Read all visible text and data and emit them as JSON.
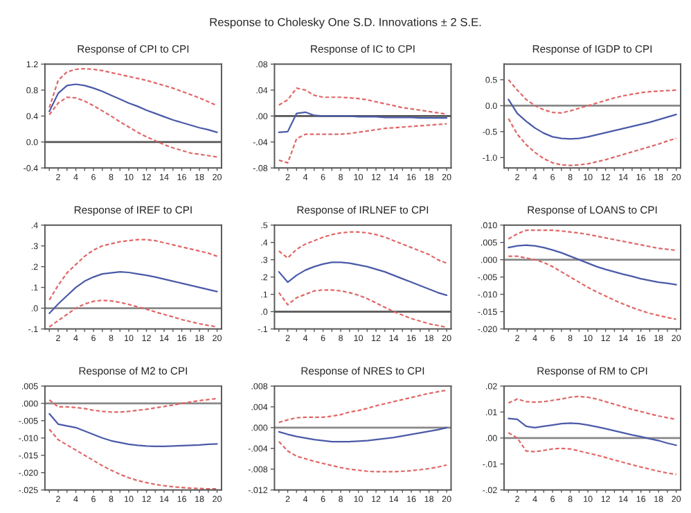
{
  "chart_data": [
    {
      "type": "line",
      "title": "Response of CPI to CPI",
      "annotations": [
        "Response to Cholesky One S.D. Innovations ± 2 S.E."
      ],
      "x": [
        1,
        2,
        3,
        4,
        5,
        6,
        7,
        8,
        9,
        10,
        11,
        12,
        13,
        14,
        15,
        16,
        17,
        18,
        19,
        20
      ],
      "xlim": [
        0.5,
        20.5
      ],
      "xticks": [
        {
          "value": 1,
          "label": null
        },
        2,
        {
          "value": 3,
          "label": null
        },
        4,
        {
          "value": 5,
          "label": null
        },
        6,
        {
          "value": 7,
          "label": null
        },
        8,
        {
          "value": 9,
          "label": null
        },
        10,
        {
          "value": 11,
          "label": null
        },
        12,
        {
          "value": 13,
          "label": null
        },
        14,
        {
          "value": 15,
          "label": null
        },
        16,
        {
          "value": 17,
          "label": null
        },
        18,
        {
          "value": 19,
          "label": null
        },
        20
      ],
      "ylim": [
        -0.4,
        1.2
      ],
      "yticks": [
        {
          "value": -0.4,
          "label": "-0.4"
        },
        {
          "value": 0,
          "label": "0.0"
        },
        0.4,
        0.8,
        1.2
      ],
      "ref_lines": [
        {
          "axis": "y",
          "value": 0,
          "color": "#555555"
        }
      ],
      "series": [
        {
          "color": "#4a5aa8",
          "line_style": "solid",
          "values": [
            0.47,
            0.75,
            0.87,
            0.89,
            0.87,
            0.83,
            0.78,
            0.72,
            0.66,
            0.6,
            0.55,
            0.49,
            0.44,
            0.39,
            0.34,
            0.3,
            0.26,
            0.22,
            0.19,
            0.15
          ]
        },
        {
          "color": "#e06666",
          "line_style": "dashed",
          "values": [
            0.53,
            0.95,
            1.08,
            1.12,
            1.13,
            1.12,
            1.1,
            1.07,
            1.04,
            1.01,
            0.98,
            0.95,
            0.91,
            0.87,
            0.83,
            0.78,
            0.73,
            0.68,
            0.62,
            0.56
          ]
        },
        {
          "color": "#e06666",
          "line_style": "dashed",
          "values": [
            0.42,
            0.6,
            0.69,
            0.68,
            0.63,
            0.56,
            0.48,
            0.4,
            0.31,
            0.23,
            0.15,
            0.08,
            0.02,
            -0.04,
            -0.09,
            -0.13,
            -0.17,
            -0.19,
            -0.21,
            -0.23
          ]
        }
      ]
    },
    {
      "type": "line",
      "title": "Response of IC to CPI",
      "x": [
        1,
        2,
        3,
        4,
        5,
        6,
        7,
        8,
        9,
        10,
        11,
        12,
        13,
        14,
        15,
        16,
        17,
        18,
        19,
        20
      ],
      "xlim": [
        0.5,
        20.5
      ],
      "xticks": [
        {
          "value": 1,
          "label": null
        },
        2,
        {
          "value": 3,
          "label": null
        },
        4,
        {
          "value": 5,
          "label": null
        },
        6,
        {
          "value": 7,
          "label": null
        },
        8,
        {
          "value": 9,
          "label": null
        },
        10,
        {
          "value": 11,
          "label": null
        },
        12,
        {
          "value": 13,
          "label": null
        },
        14,
        {
          "value": 15,
          "label": null
        },
        16,
        {
          "value": 17,
          "label": null
        },
        18,
        {
          "value": 19,
          "label": null
        },
        20
      ],
      "ylim": [
        -0.08,
        0.08
      ],
      "yticks": [
        {
          "value": -0.08,
          "label": "-.08"
        },
        {
          "value": -0.04,
          "label": "-.04"
        },
        {
          "value": 0,
          "label": ".00"
        },
        {
          "value": 0.04,
          "label": ".04"
        },
        {
          "value": 0.08,
          "label": ".08"
        }
      ],
      "ref_lines": [
        {
          "axis": "y",
          "value": 0,
          "color": "#555555"
        }
      ],
      "series": [
        {
          "color": "#4a5aa8",
          "line_style": "solid",
          "values": [
            -0.025,
            -0.024,
            0.004,
            0.006,
            0.001,
            0.0,
            0.0,
            0.0,
            0.0,
            -0.001,
            -0.001,
            -0.001,
            -0.002,
            -0.002,
            -0.002,
            -0.002,
            -0.003,
            -0.003,
            -0.003,
            -0.003
          ]
        },
        {
          "color": "#e06666",
          "line_style": "dashed",
          "values": [
            0.017,
            0.025,
            0.043,
            0.04,
            0.032,
            0.029,
            0.029,
            0.029,
            0.028,
            0.027,
            0.025,
            0.022,
            0.019,
            0.016,
            0.013,
            0.011,
            0.009,
            0.007,
            0.005,
            0.003
          ]
        },
        {
          "color": "#e06666",
          "line_style": "dashed",
          "values": [
            -0.068,
            -0.072,
            -0.035,
            -0.028,
            -0.028,
            -0.028,
            -0.028,
            -0.028,
            -0.027,
            -0.025,
            -0.023,
            -0.021,
            -0.019,
            -0.018,
            -0.017,
            -0.016,
            -0.015,
            -0.014,
            -0.013,
            -0.012
          ]
        }
      ]
    },
    {
      "type": "line",
      "title": "Response of IGDP to CPI",
      "x": [
        1,
        2,
        3,
        4,
        5,
        6,
        7,
        8,
        9,
        10,
        11,
        12,
        13,
        14,
        15,
        16,
        17,
        18,
        19,
        20
      ],
      "xlim": [
        0.5,
        20.5
      ],
      "xticks": [
        {
          "value": 1,
          "label": null
        },
        2,
        {
          "value": 3,
          "label": null
        },
        4,
        {
          "value": 5,
          "label": null
        },
        6,
        {
          "value": 7,
          "label": null
        },
        8,
        {
          "value": 9,
          "label": null
        },
        10,
        {
          "value": 11,
          "label": null
        },
        12,
        {
          "value": 13,
          "label": null
        },
        14,
        {
          "value": 15,
          "label": null
        },
        16,
        {
          "value": 17,
          "label": null
        },
        18,
        {
          "value": 19,
          "label": null
        },
        20
      ],
      "ylim": [
        -1.2,
        0.8
      ],
      "yticks": [
        {
          "value": -1.0,
          "label": "-1.0"
        },
        {
          "value": -0.5,
          "label": "-0.5"
        },
        {
          "value": 0,
          "label": "0.0"
        },
        0.5
      ],
      "ref_lines": [
        {
          "axis": "y",
          "value": 0,
          "color": "#888888"
        }
      ],
      "series": [
        {
          "color": "#4a5aa8",
          "line_style": "solid",
          "values": [
            0.12,
            -0.15,
            -0.3,
            -0.43,
            -0.53,
            -0.6,
            -0.63,
            -0.64,
            -0.63,
            -0.6,
            -0.56,
            -0.52,
            -0.48,
            -0.44,
            -0.4,
            -0.36,
            -0.32,
            -0.27,
            -0.22,
            -0.17
          ]
        },
        {
          "color": "#e06666",
          "line_style": "dashed",
          "values": [
            0.5,
            0.3,
            0.12,
            0.0,
            -0.08,
            -0.13,
            -0.14,
            -0.1,
            -0.05,
            0.0,
            0.05,
            0.1,
            0.15,
            0.19,
            0.22,
            0.25,
            0.27,
            0.28,
            0.29,
            0.3
          ]
        },
        {
          "color": "#e06666",
          "line_style": "dashed",
          "values": [
            -0.25,
            -0.55,
            -0.75,
            -0.9,
            -1.02,
            -1.1,
            -1.14,
            -1.15,
            -1.14,
            -1.12,
            -1.08,
            -1.04,
            -0.99,
            -0.94,
            -0.89,
            -0.84,
            -0.79,
            -0.74,
            -0.68,
            -0.63
          ]
        }
      ]
    },
    {
      "type": "line",
      "title": "Response of IREF to CPI",
      "x": [
        1,
        2,
        3,
        4,
        5,
        6,
        7,
        8,
        9,
        10,
        11,
        12,
        13,
        14,
        15,
        16,
        17,
        18,
        19,
        20
      ],
      "xlim": [
        0.5,
        20.5
      ],
      "xticks": [
        {
          "value": 1,
          "label": null
        },
        2,
        {
          "value": 3,
          "label": null
        },
        4,
        {
          "value": 5,
          "label": null
        },
        6,
        {
          "value": 7,
          "label": null
        },
        8,
        {
          "value": 9,
          "label": null
        },
        10,
        {
          "value": 11,
          "label": null
        },
        12,
        {
          "value": 13,
          "label": null
        },
        14,
        {
          "value": 15,
          "label": null
        },
        16,
        {
          "value": 17,
          "label": null
        },
        18,
        {
          "value": 19,
          "label": null
        },
        20
      ],
      "ylim": [
        -0.1,
        0.4
      ],
      "yticks": [
        {
          "value": -0.1,
          "label": "-.1"
        },
        {
          "value": 0,
          "label": ".0"
        },
        {
          "value": 0.1,
          "label": ".1"
        },
        {
          "value": 0.2,
          "label": ".2"
        },
        {
          "value": 0.3,
          "label": ".3"
        },
        {
          "value": 0.4,
          "label": ".4"
        }
      ],
      "ref_lines": [
        {
          "axis": "y",
          "value": 0,
          "color": "#888888"
        }
      ],
      "series": [
        {
          "color": "#4a5aa8",
          "line_style": "solid",
          "values": [
            -0.025,
            0.02,
            0.06,
            0.1,
            0.13,
            0.15,
            0.165,
            0.17,
            0.175,
            0.172,
            0.165,
            0.158,
            0.15,
            0.14,
            0.13,
            0.12,
            0.11,
            0.1,
            0.09,
            0.08
          ]
        },
        {
          "color": "#e06666",
          "line_style": "dashed",
          "values": [
            0.04,
            0.11,
            0.17,
            0.21,
            0.25,
            0.28,
            0.3,
            0.31,
            0.32,
            0.325,
            0.33,
            0.33,
            0.325,
            0.315,
            0.305,
            0.295,
            0.285,
            0.275,
            0.265,
            0.25
          ]
        },
        {
          "color": "#e06666",
          "line_style": "dashed",
          "values": [
            -0.09,
            -0.06,
            -0.03,
            0.0,
            0.02,
            0.033,
            0.038,
            0.035,
            0.028,
            0.018,
            0.006,
            -0.005,
            -0.018,
            -0.03,
            -0.042,
            -0.055,
            -0.065,
            -0.075,
            -0.083,
            -0.09
          ]
        }
      ]
    },
    {
      "type": "line",
      "title": "Response of IRLNEF to CPI",
      "x": [
        1,
        2,
        3,
        4,
        5,
        6,
        7,
        8,
        9,
        10,
        11,
        12,
        13,
        14,
        15,
        16,
        17,
        18,
        19,
        20
      ],
      "xlim": [
        0.5,
        20.5
      ],
      "xticks": [
        {
          "value": 1,
          "label": null
        },
        2,
        {
          "value": 3,
          "label": null
        },
        4,
        {
          "value": 5,
          "label": null
        },
        6,
        {
          "value": 7,
          "label": null
        },
        8,
        {
          "value": 9,
          "label": null
        },
        10,
        {
          "value": 11,
          "label": null
        },
        12,
        {
          "value": 13,
          "label": null
        },
        14,
        {
          "value": 15,
          "label": null
        },
        16,
        {
          "value": 17,
          "label": null
        },
        18,
        {
          "value": 19,
          "label": null
        },
        20
      ],
      "ylim": [
        -0.1,
        0.5
      ],
      "yticks": [
        {
          "value": -0.1,
          "label": "-.1"
        },
        {
          "value": 0,
          "label": ".0"
        },
        {
          "value": 0.1,
          "label": ".1"
        },
        {
          "value": 0.2,
          "label": ".2"
        },
        {
          "value": 0.3,
          "label": ".3"
        },
        {
          "value": 0.4,
          "label": ".4"
        },
        {
          "value": 0.5,
          "label": ".5"
        }
      ],
      "ref_lines": [
        {
          "axis": "y",
          "value": 0,
          "color": "#555555"
        }
      ],
      "series": [
        {
          "color": "#4a5aa8",
          "line_style": "solid",
          "values": [
            0.23,
            0.17,
            0.21,
            0.24,
            0.26,
            0.275,
            0.285,
            0.285,
            0.28,
            0.27,
            0.26,
            0.245,
            0.23,
            0.21,
            0.19,
            0.17,
            0.15,
            0.13,
            0.11,
            0.095
          ]
        },
        {
          "color": "#e06666",
          "line_style": "dashed",
          "values": [
            0.35,
            0.31,
            0.36,
            0.39,
            0.41,
            0.43,
            0.445,
            0.455,
            0.46,
            0.46,
            0.455,
            0.445,
            0.43,
            0.41,
            0.39,
            0.37,
            0.35,
            0.33,
            0.3,
            0.28
          ]
        },
        {
          "color": "#e06666",
          "line_style": "dashed",
          "values": [
            0.11,
            0.04,
            0.08,
            0.1,
            0.12,
            0.125,
            0.125,
            0.12,
            0.11,
            0.095,
            0.075,
            0.05,
            0.025,
            0.0,
            -0.02,
            -0.04,
            -0.055,
            -0.07,
            -0.08,
            -0.09
          ]
        }
      ]
    },
    {
      "type": "line",
      "title": "Response of LOANS to CPI",
      "x": [
        1,
        2,
        3,
        4,
        5,
        6,
        7,
        8,
        9,
        10,
        11,
        12,
        13,
        14,
        15,
        16,
        17,
        18,
        19,
        20
      ],
      "xlim": [
        0.5,
        20.5
      ],
      "xticks": [
        {
          "value": 1,
          "label": null
        },
        2,
        {
          "value": 3,
          "label": null
        },
        4,
        {
          "value": 5,
          "label": null
        },
        6,
        {
          "value": 7,
          "label": null
        },
        8,
        {
          "value": 9,
          "label": null
        },
        10,
        {
          "value": 11,
          "label": null
        },
        12,
        {
          "value": 13,
          "label": null
        },
        14,
        {
          "value": 15,
          "label": null
        },
        16,
        {
          "value": 17,
          "label": null
        },
        18,
        {
          "value": 19,
          "label": null
        },
        20
      ],
      "ylim": [
        -0.02,
        0.01
      ],
      "yticks": [
        {
          "value": -0.02,
          "label": "-.020"
        },
        {
          "value": -0.015,
          "label": "-.015"
        },
        {
          "value": -0.01,
          "label": "-.010"
        },
        {
          "value": -0.005,
          "label": "-.005"
        },
        {
          "value": 0,
          "label": ".000"
        },
        {
          "value": 0.005,
          "label": ".005"
        },
        {
          "value": 0.01,
          "label": ".010"
        }
      ],
      "ref_lines": [
        {
          "axis": "y",
          "value": 0,
          "color": "#888888"
        }
      ],
      "series": [
        {
          "color": "#4a5aa8",
          "line_style": "solid",
          "values": [
            0.0035,
            0.004,
            0.0042,
            0.004,
            0.0035,
            0.0028,
            0.002,
            0.001,
            0.0,
            -0.001,
            -0.002,
            -0.0028,
            -0.0035,
            -0.0042,
            -0.0048,
            -0.0055,
            -0.006,
            -0.0065,
            -0.0068,
            -0.0072
          ]
        },
        {
          "color": "#e06666",
          "line_style": "dashed",
          "values": [
            0.006,
            0.0075,
            0.0085,
            0.0085,
            0.0085,
            0.0085,
            0.0083,
            0.008,
            0.0077,
            0.0073,
            0.0068,
            0.0063,
            0.0058,
            0.0053,
            0.0048,
            0.0043,
            0.0038,
            0.0033,
            0.003,
            0.0027
          ]
        },
        {
          "color": "#e06666",
          "line_style": "dashed",
          "values": [
            0.001,
            0.001,
            0.0005,
            0.0,
            -0.0008,
            -0.002,
            -0.0035,
            -0.005,
            -0.0065,
            -0.008,
            -0.0093,
            -0.0105,
            -0.0117,
            -0.0128,
            -0.0138,
            -0.0147,
            -0.0155,
            -0.0161,
            -0.0167,
            -0.0172
          ]
        }
      ]
    },
    {
      "type": "line",
      "title": "Response of M2 to CPI",
      "x": [
        1,
        2,
        3,
        4,
        5,
        6,
        7,
        8,
        9,
        10,
        11,
        12,
        13,
        14,
        15,
        16,
        17,
        18,
        19,
        20
      ],
      "xlim": [
        0.5,
        20.5
      ],
      "xticks": [
        {
          "value": 1,
          "label": null
        },
        2,
        {
          "value": 3,
          "label": null
        },
        4,
        {
          "value": 5,
          "label": null
        },
        6,
        {
          "value": 7,
          "label": null
        },
        8,
        {
          "value": 9,
          "label": null
        },
        10,
        {
          "value": 11,
          "label": null
        },
        12,
        {
          "value": 13,
          "label": null
        },
        14,
        {
          "value": 15,
          "label": null
        },
        16,
        {
          "value": 17,
          "label": null
        },
        18,
        {
          "value": 19,
          "label": null
        },
        20
      ],
      "ylim": [
        -0.025,
        0.005
      ],
      "yticks": [
        {
          "value": -0.025,
          "label": "-.025"
        },
        {
          "value": -0.02,
          "label": "-.020"
        },
        {
          "value": -0.015,
          "label": "-.015"
        },
        {
          "value": -0.01,
          "label": "-.010"
        },
        {
          "value": -0.005,
          "label": "-.005"
        },
        {
          "value": 0,
          "label": ".000"
        },
        {
          "value": 0.005,
          "label": ".005"
        }
      ],
      "ref_lines": [
        {
          "axis": "y",
          "value": 0,
          "color": "#888888"
        }
      ],
      "series": [
        {
          "color": "#4a5aa8",
          "line_style": "solid",
          "values": [
            -0.003,
            -0.006,
            -0.0065,
            -0.007,
            -0.008,
            -0.009,
            -0.01,
            -0.0108,
            -0.0113,
            -0.0118,
            -0.0121,
            -0.0123,
            -0.0124,
            -0.0124,
            -0.0123,
            -0.0122,
            -0.0121,
            -0.012,
            -0.0118,
            -0.0117
          ]
        },
        {
          "color": "#e06666",
          "line_style": "dashed",
          "values": [
            0.001,
            -0.001,
            -0.001,
            -0.0012,
            -0.0015,
            -0.002,
            -0.0023,
            -0.0025,
            -0.0025,
            -0.0023,
            -0.002,
            -0.0017,
            -0.0013,
            -0.0009,
            -0.0005,
            0.0,
            0.0004,
            0.0008,
            0.0011,
            0.0014
          ]
        },
        {
          "color": "#e06666",
          "line_style": "dashed",
          "values": [
            -0.0075,
            -0.0105,
            -0.012,
            -0.0135,
            -0.015,
            -0.0165,
            -0.018,
            -0.0193,
            -0.0205,
            -0.0215,
            -0.0223,
            -0.0229,
            -0.0234,
            -0.0238,
            -0.0241,
            -0.0243,
            -0.0245,
            -0.0246,
            -0.0247,
            -0.0247
          ]
        }
      ]
    },
    {
      "type": "line",
      "title": "Response of NRES to CPI",
      "x": [
        1,
        2,
        3,
        4,
        5,
        6,
        7,
        8,
        9,
        10,
        11,
        12,
        13,
        14,
        15,
        16,
        17,
        18,
        19,
        20
      ],
      "xlim": [
        0.5,
        20.5
      ],
      "xticks": [
        {
          "value": 1,
          "label": null
        },
        2,
        {
          "value": 3,
          "label": null
        },
        4,
        {
          "value": 5,
          "label": null
        },
        6,
        {
          "value": 7,
          "label": null
        },
        8,
        {
          "value": 9,
          "label": null
        },
        10,
        {
          "value": 11,
          "label": null
        },
        12,
        {
          "value": 13,
          "label": null
        },
        14,
        {
          "value": 15,
          "label": null
        },
        16,
        {
          "value": 17,
          "label": null
        },
        18,
        {
          "value": 19,
          "label": null
        },
        20
      ],
      "ylim": [
        -0.012,
        0.008
      ],
      "yticks": [
        {
          "value": -0.012,
          "label": "-.012"
        },
        {
          "value": -0.008,
          "label": "-.008"
        },
        {
          "value": -0.004,
          "label": "-.004"
        },
        {
          "value": 0,
          "label": ".000"
        },
        {
          "value": 0.004,
          "label": ".004"
        },
        {
          "value": 0.008,
          "label": ".008"
        }
      ],
      "ref_lines": [
        {
          "axis": "y",
          "value": 0,
          "color": "#888888"
        }
      ],
      "series": [
        {
          "color": "#4a5aa8",
          "line_style": "solid",
          "values": [
            -0.0008,
            -0.0013,
            -0.0017,
            -0.002,
            -0.0023,
            -0.0025,
            -0.0027,
            -0.0027,
            -0.0027,
            -0.0026,
            -0.0025,
            -0.0023,
            -0.0021,
            -0.0019,
            -0.0016,
            -0.0013,
            -0.001,
            -0.0007,
            -0.0004,
            0.0
          ]
        },
        {
          "color": "#e06666",
          "line_style": "dashed",
          "values": [
            0.001,
            0.0015,
            0.0019,
            0.002,
            0.002,
            0.002,
            0.0022,
            0.0025,
            0.003,
            0.0033,
            0.0037,
            0.0042,
            0.0046,
            0.005,
            0.0054,
            0.0058,
            0.0062,
            0.0066,
            0.0069,
            0.0072
          ]
        },
        {
          "color": "#e06666",
          "line_style": "dashed",
          "values": [
            -0.0027,
            -0.0045,
            -0.0055,
            -0.006,
            -0.0065,
            -0.0069,
            -0.0073,
            -0.0077,
            -0.008,
            -0.0082,
            -0.0084,
            -0.0085,
            -0.0085,
            -0.0085,
            -0.0084,
            -0.0083,
            -0.0081,
            -0.0079,
            -0.0076,
            -0.0072
          ]
        }
      ]
    },
    {
      "type": "line",
      "title": "Response of RM to CPI",
      "x": [
        1,
        2,
        3,
        4,
        5,
        6,
        7,
        8,
        9,
        10,
        11,
        12,
        13,
        14,
        15,
        16,
        17,
        18,
        19,
        20
      ],
      "xlim": [
        0.5,
        20.5
      ],
      "xticks": [
        {
          "value": 1,
          "label": null
        },
        2,
        {
          "value": 3,
          "label": null
        },
        4,
        {
          "value": 5,
          "label": null
        },
        6,
        {
          "value": 7,
          "label": null
        },
        8,
        {
          "value": 9,
          "label": null
        },
        10,
        {
          "value": 11,
          "label": null
        },
        12,
        {
          "value": 13,
          "label": null
        },
        14,
        {
          "value": 15,
          "label": null
        },
        16,
        {
          "value": 17,
          "label": null
        },
        18,
        {
          "value": 19,
          "label": null
        },
        20
      ],
      "ylim": [
        -0.02,
        0.02
      ],
      "yticks": [
        {
          "value": -0.02,
          "label": "-.02"
        },
        {
          "value": -0.01,
          "label": "-.01"
        },
        {
          "value": 0,
          "label": ".00"
        },
        {
          "value": 0.01,
          "label": ".01"
        },
        {
          "value": 0.02,
          "label": ".02"
        }
      ],
      "ref_lines": [
        {
          "axis": "y",
          "value": 0,
          "color": "#888888"
        }
      ],
      "series": [
        {
          "color": "#4a5aa8",
          "line_style": "solid",
          "values": [
            0.0075,
            0.0072,
            0.0045,
            0.004,
            0.0045,
            0.005,
            0.0055,
            0.0057,
            0.0055,
            0.005,
            0.0043,
            0.0036,
            0.0028,
            0.002,
            0.0012,
            0.0005,
            -0.0003,
            -0.001,
            -0.002,
            -0.0028
          ]
        },
        {
          "color": "#e06666",
          "line_style": "dashed",
          "values": [
            0.0135,
            0.015,
            0.014,
            0.0138,
            0.014,
            0.0145,
            0.015,
            0.0157,
            0.016,
            0.0157,
            0.015,
            0.014,
            0.013,
            0.012,
            0.011,
            0.0102,
            0.0093,
            0.0085,
            0.0078,
            0.0072
          ]
        },
        {
          "color": "#e06666",
          "line_style": "dashed",
          "values": [
            0.002,
            0.0,
            -0.005,
            -0.0053,
            -0.0048,
            -0.0042,
            -0.004,
            -0.0042,
            -0.005,
            -0.0058,
            -0.0066,
            -0.0075,
            -0.0085,
            -0.0094,
            -0.0103,
            -0.0112,
            -0.012,
            -0.0128,
            -0.0135,
            -0.014
          ]
        }
      ]
    }
  ]
}
